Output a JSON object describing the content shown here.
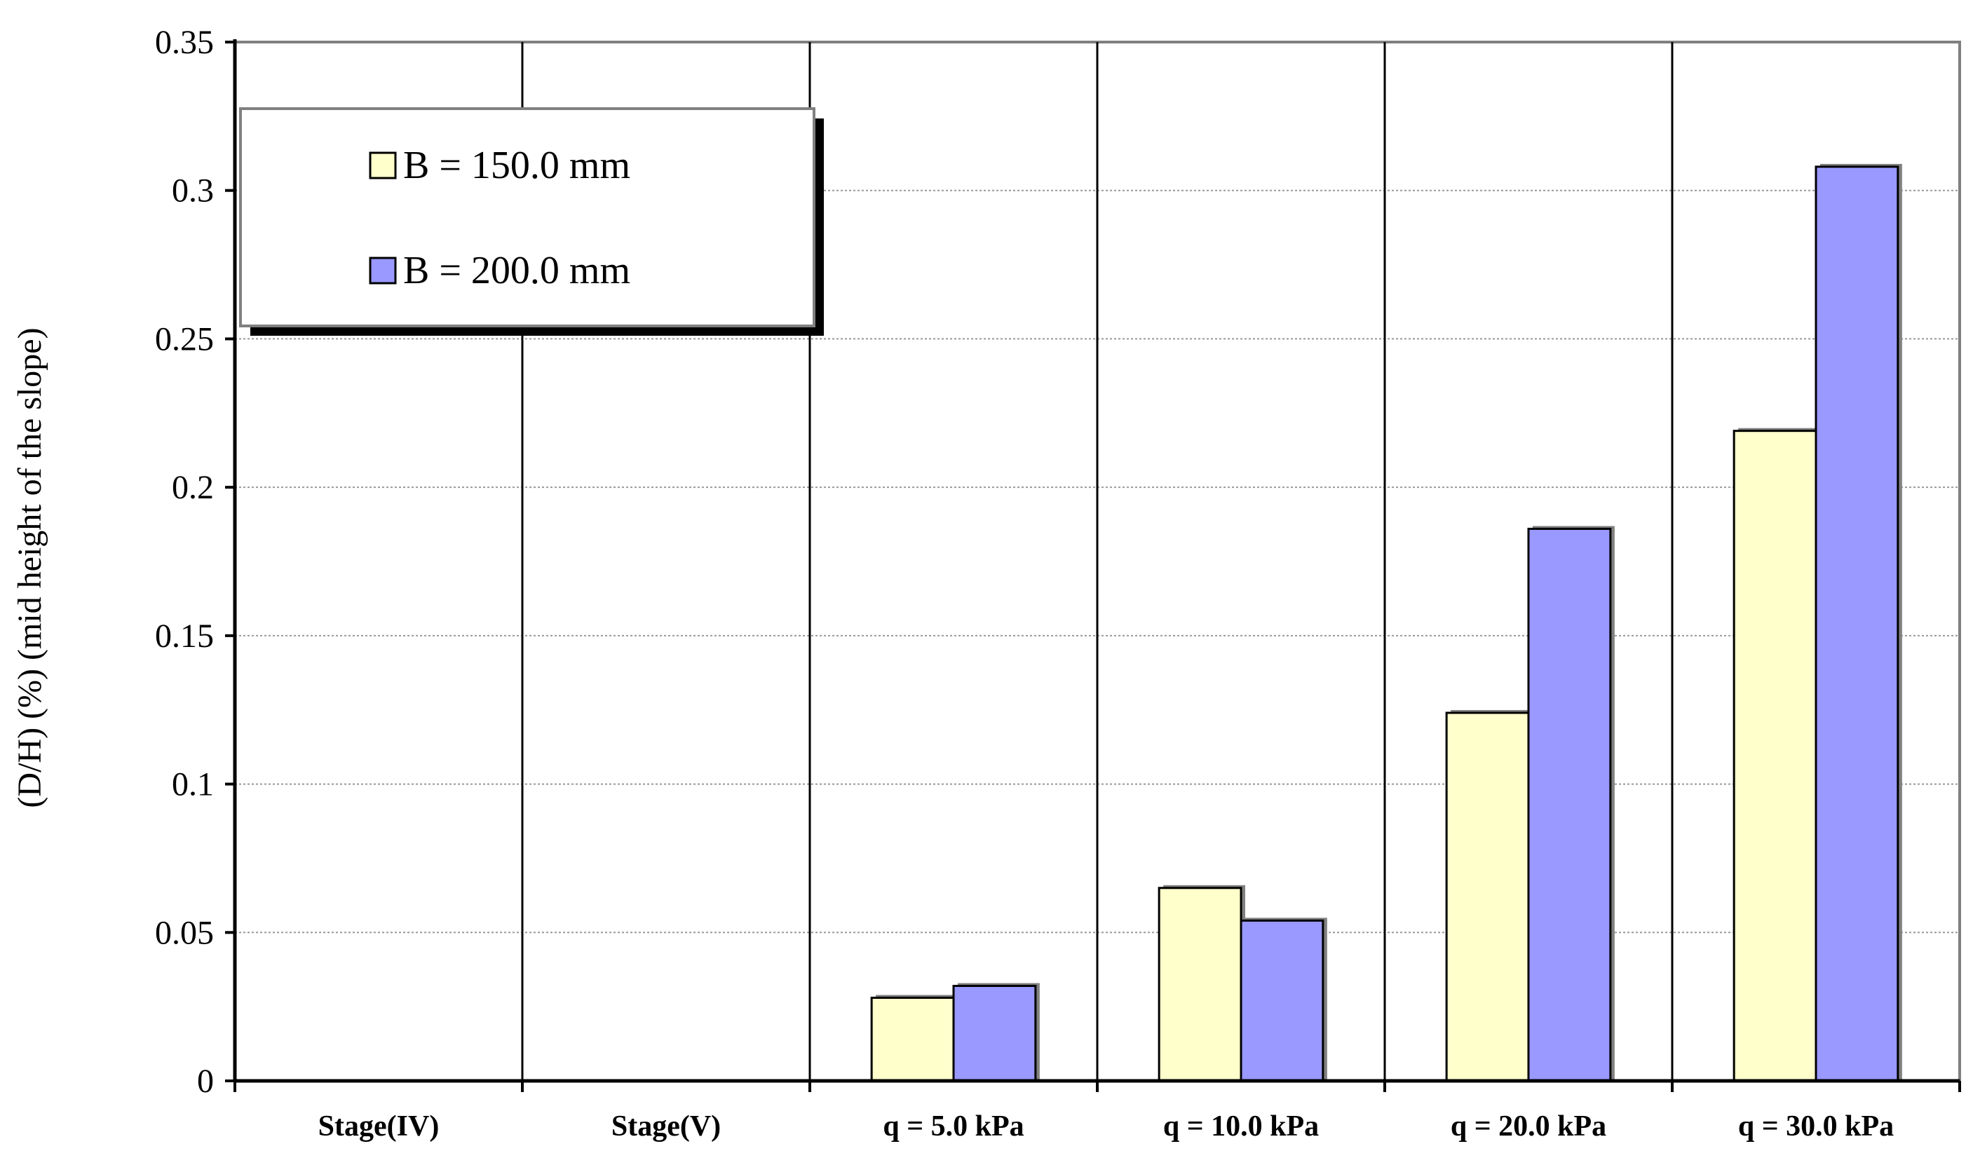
{
  "chart_data": {
    "type": "bar",
    "title": "",
    "xlabel": "",
    "ylabel": "(D/H) (%) (mid height of the slope)",
    "ylim": [
      0,
      0.35
    ],
    "yticks": [
      0,
      0.05,
      0.1,
      0.15,
      0.2,
      0.25,
      0.3,
      0.35
    ],
    "ytick_labels": [
      "0",
      "0.05",
      "0.1",
      "0.15",
      "0.2",
      "0.25",
      "0.3",
      "0.35"
    ],
    "grid": true,
    "legend_position": "top-left",
    "categories": [
      "Stage(IV)",
      "Stage(V)",
      "q = 5.0 kPa",
      "q = 10.0 kPa",
      "q = 20.0 kPa",
      "q = 30.0 kPa"
    ],
    "series": [
      {
        "name": "B = 150.0 mm",
        "color": "#ffffcc",
        "values": [
          null,
          null,
          0.028,
          0.065,
          0.124,
          0.219
        ]
      },
      {
        "name": "B = 200.0 mm",
        "color": "#9999ff",
        "values": [
          null,
          null,
          0.032,
          0.054,
          0.186,
          0.308
        ]
      }
    ]
  }
}
